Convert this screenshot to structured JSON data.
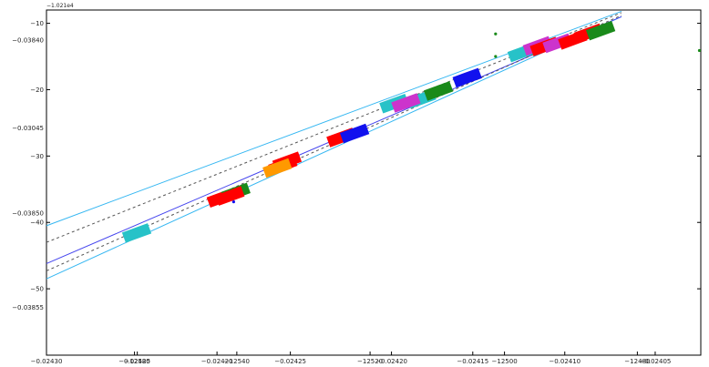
{
  "chart_data": {
    "type": "scatter",
    "title": "",
    "xlabel": "",
    "ylabel": "",
    "offset_text": "−1.021e4",
    "grid": false,
    "x_range": [
      -12620,
      -12290
    ],
    "y_range": [
      -60,
      -8
    ],
    "y_ticks": [
      {
        "value": -10,
        "label": "−10"
      },
      {
        "value": -20,
        "label": "−20"
      },
      {
        "value": -30,
        "label": "−30"
      },
      {
        "value": -40,
        "label": "−40"
      },
      {
        "value": -50,
        "label": "−50"
      }
    ],
    "y_secondary_labels": [
      {
        "value": -12.5,
        "label": "−0.03840"
      },
      {
        "value": -25.8,
        "label": "−0.03045"
      },
      {
        "value": -38.6,
        "label": "−0.03850"
      },
      {
        "value": -52.8,
        "label": "−0.03855"
      }
    ],
    "x_tick_labels": [
      {
        "x": -12620.0,
        "label": "−0.02430"
      },
      {
        "x": -12575.6,
        "label": "−0.02425"
      },
      {
        "x": -12574.2,
        "label": "−12580"
      },
      {
        "x": -12534.0,
        "label": "−0.02420"
      },
      {
        "x": -12524.0,
        "label": "−12540"
      },
      {
        "x": -12497.0,
        "label": "−0.02425"
      },
      {
        "x": -12456.8,
        "label": "−12520"
      },
      {
        "x": -12446.0,
        "label": "−0.02420"
      },
      {
        "x": -12405.0,
        "label": "−0.02415"
      },
      {
        "x": -12389.0,
        "label": "−12500"
      },
      {
        "x": -12358.6,
        "label": "−0.02410"
      },
      {
        "x": -12322.0,
        "label": "−12480"
      },
      {
        "x": -12313.0,
        "label": "−0.02405"
      }
    ],
    "lane_lines": [
      {
        "color": "#35b7f2",
        "style": "solid",
        "x1": -12620,
        "y1": -40.5,
        "x2": -12330,
        "y2": -8.2
      },
      {
        "color": "#35b7f2",
        "style": "solid",
        "x1": -12620,
        "y1": -48.5,
        "x2": -12330,
        "y2": -9.0
      },
      {
        "color": "#4444ee",
        "style": "solid",
        "x1": -12620,
        "y1": -46.2,
        "x2": -12330,
        "y2": -9.0
      },
      {
        "color": "#555555",
        "style": "dashed",
        "x1": -12620,
        "y1": -43.0,
        "x2": -12330,
        "y2": -8.4
      },
      {
        "color": "#555555",
        "style": "dashed",
        "x1": -12620,
        "y1": -47.3,
        "x2": -12330,
        "y2": -8.8
      }
    ],
    "vehicles": [
      {
        "x": -12574.5,
        "y": -41.6,
        "color": "#27c2c8"
      },
      {
        "x": -12531.8,
        "y": -36.3,
        "color": "#ff0000"
      },
      {
        "x": -12524.5,
        "y": -35.5,
        "color": "#1a8a1a"
      },
      {
        "x": -12527.5,
        "y": -36.0,
        "color": "#ff0000"
      },
      {
        "x": -12500.8,
        "y": -31.4,
        "color": "#ff0000"
      },
      {
        "x": -12498.7,
        "y": -30.8,
        "color": "#ff0000"
      },
      {
        "x": -12503.6,
        "y": -31.8,
        "color": "#ff9900"
      },
      {
        "x": -12471.4,
        "y": -27.2,
        "color": "#ff0000"
      },
      {
        "x": -12464.6,
        "y": -26.6,
        "color": "#1111ee"
      },
      {
        "x": -12444.7,
        "y": -22.1,
        "color": "#27c2c8"
      },
      {
        "x": -12430.8,
        "y": -21.4,
        "color": "#27c2c8"
      },
      {
        "x": -12438.7,
        "y": -22.0,
        "color": "#cc33cc"
      },
      {
        "x": -12422.3,
        "y": -20.2,
        "color": "#1a8a1a"
      },
      {
        "x": -12407.8,
        "y": -18.2,
        "color": "#1111ee"
      },
      {
        "x": -12380.1,
        "y": -14.4,
        "color": "#27c2c8"
      },
      {
        "x": -12372.4,
        "y": -13.4,
        "color": "#cc33cc"
      },
      {
        "x": -12368.8,
        "y": -13.5,
        "color": "#ff0000"
      },
      {
        "x": -12362.4,
        "y": -13.0,
        "color": "#cc33cc"
      },
      {
        "x": -12354.6,
        "y": -12.5,
        "color": "#ff0000"
      },
      {
        "x": -12346.7,
        "y": -11.5,
        "color": "#ff0000"
      },
      {
        "x": -12340.5,
        "y": -11.1,
        "color": "#1a8a1a"
      }
    ],
    "markers": [
      {
        "x": -12525.6,
        "y": -36.9,
        "color": "#1111ee"
      },
      {
        "x": -12393.5,
        "y": -11.6,
        "color": "#1a8a1a"
      },
      {
        "x": -12393.5,
        "y": -15.0,
        "color": "#1a8a1a"
      },
      {
        "x": -12290.7,
        "y": -14.1,
        "color": "#1a8a1a"
      }
    ]
  }
}
